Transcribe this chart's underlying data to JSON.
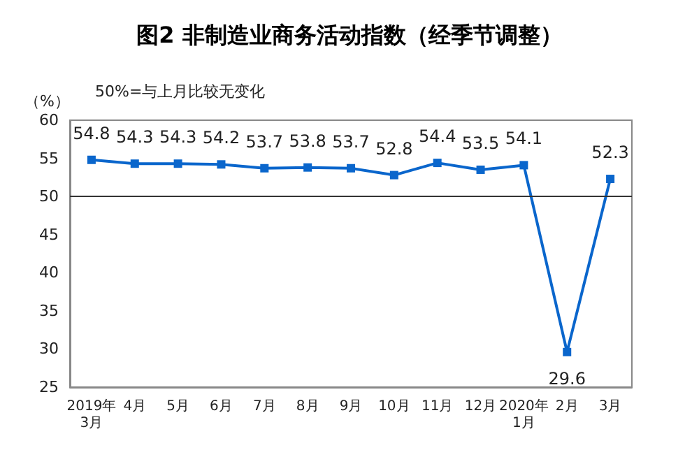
{
  "chart_data": {
    "type": "line",
    "title": "图2 非制造业商务活动指数（经季节调整）",
    "ylabel": "（%）",
    "annotations": [
      "50%=与上月比较无变化"
    ],
    "categories": [
      "2019年\n3月",
      "4月",
      "5月",
      "6月",
      "7月",
      "8月",
      "9月",
      "10月",
      "11月",
      "12月",
      "2020年\n1月",
      "2月",
      "3月"
    ],
    "series": [
      {
        "color": "#0a66cc",
        "values": [
          54.8,
          54.3,
          54.3,
          54.2,
          53.7,
          53.8,
          53.7,
          52.8,
          54.4,
          53.5,
          54.1,
          29.6,
          52.3
        ]
      }
    ],
    "ylim": [
      25,
      60
    ],
    "yticks": [
      25,
      30,
      35,
      40,
      45,
      50,
      55,
      60
    ],
    "ref_lines": [
      {
        "axis": "y",
        "value": 50,
        "color": "#333333"
      }
    ],
    "data_labels": true,
    "marker": "square",
    "line_style": "solid",
    "grid": false
  }
}
